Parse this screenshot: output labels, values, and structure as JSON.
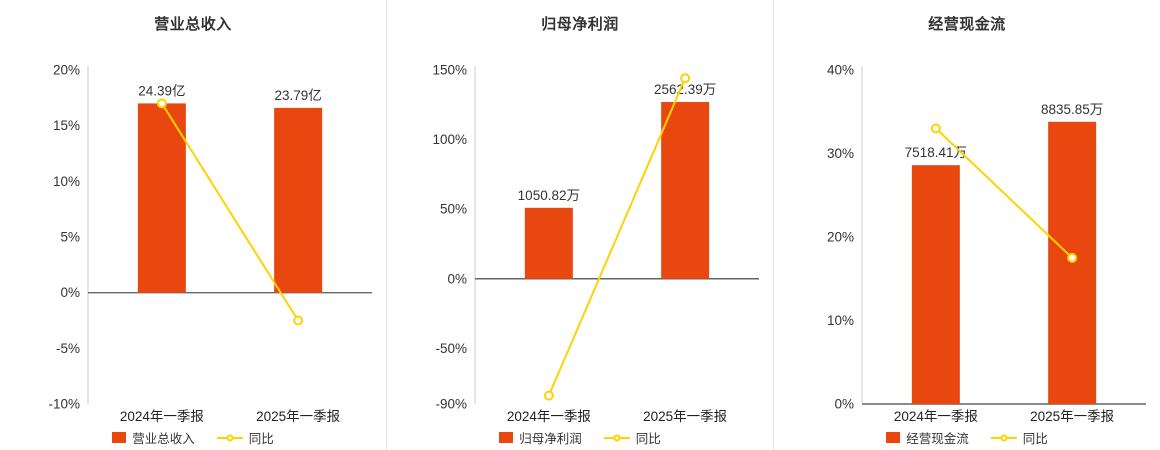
{
  "colors": {
    "bar": "#e8470f",
    "line": "#ffd200",
    "title": "#333333",
    "tick": "#333333",
    "value_label": "#333333",
    "zero_line": "#666666",
    "axis_line": "#cccccc",
    "divider": "#e3e3e3",
    "marker_fill": "#ffffff"
  },
  "chart_data": [
    {
      "type": "bar+line",
      "title": "营业总收入",
      "categories": [
        "2024年一季报",
        "2025年一季报"
      ],
      "bar_series": {
        "name": "营业总收入",
        "labels": [
          "24.39亿",
          "23.79亿"
        ],
        "axis_values_pct": [
          17,
          16.6
        ]
      },
      "line_series": {
        "name": "同比",
        "values_pct": [
          17,
          -2.5
        ]
      },
      "ylim": [
        -10,
        20
      ],
      "yticks": [
        20,
        15,
        10,
        5,
        0,
        -5,
        -10
      ],
      "ytick_suffix": "%",
      "legend_position": "bottom",
      "grid": false
    },
    {
      "type": "bar+line",
      "title": "归母净利润",
      "categories": [
        "2024年一季报",
        "2025年一季报"
      ],
      "bar_series": {
        "name": "归母净利润",
        "labels": [
          "1050.82万",
          "2562.39万"
        ],
        "axis_values_pct": [
          51,
          127
        ]
      },
      "line_series": {
        "name": "同比",
        "values_pct": [
          -84,
          144
        ]
      },
      "ylim": [
        -90,
        150
      ],
      "yticks": [
        150,
        100,
        50,
        0,
        -50,
        -90
      ],
      "ytick_suffix": "%",
      "legend_position": "bottom",
      "grid": false
    },
    {
      "type": "bar+line",
      "title": "经营现金流",
      "categories": [
        "2024年一季报",
        "2025年一季报"
      ],
      "bar_series": {
        "name": "经营现金流",
        "labels": [
          "7518.41万",
          "8835.85万"
        ],
        "axis_values_pct": [
          28.6,
          33.8
        ]
      },
      "line_series": {
        "name": "同比",
        "values_pct": [
          33,
          17.5
        ]
      },
      "ylim": [
        0,
        40
      ],
      "yticks": [
        40,
        30,
        20,
        10,
        0
      ],
      "ytick_suffix": "%",
      "legend_position": "bottom",
      "grid": false
    }
  ]
}
